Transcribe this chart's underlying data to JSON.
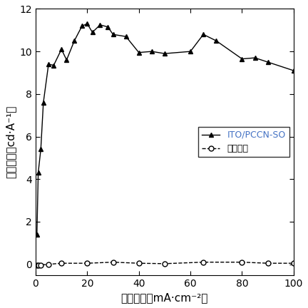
{
  "series1_label": "ITO/PCCN-SO",
  "series2_label": "对照器件",
  "series1_x": [
    0.5,
    1.0,
    2.0,
    3.0,
    5.0,
    7.0,
    10.0,
    12.0,
    15.0,
    18.0,
    20.0,
    22.0,
    25.0,
    28.0,
    30.0,
    35.0,
    40.0,
    45.0,
    50.0,
    60.0,
    65.0,
    70.0,
    80.0,
    85.0,
    90.0,
    100.0
  ],
  "series1_y": [
    1.4,
    4.3,
    5.4,
    7.6,
    9.4,
    9.35,
    10.1,
    9.6,
    10.5,
    11.2,
    11.3,
    10.9,
    11.25,
    11.15,
    10.8,
    10.7,
    9.95,
    10.0,
    9.9,
    10.0,
    10.8,
    10.5,
    9.65,
    9.7,
    9.5,
    9.1
  ],
  "series2_x": [
    0.5,
    1.0,
    2.0,
    5.0,
    10.0,
    20.0,
    30.0,
    40.0,
    50.0,
    65.0,
    80.0,
    90.0,
    100.0
  ],
  "series2_y": [
    -0.05,
    -0.05,
    -0.03,
    0.0,
    0.05,
    0.05,
    0.1,
    0.05,
    0.03,
    0.1,
    0.1,
    0.05,
    0.05
  ],
  "xlabel": "电流密度（mA·cm⁻²）",
  "ylabel": "电流效率（cd·A⁻¹）",
  "xlim": [
    0,
    100
  ],
  "ylim": [
    -0.5,
    12
  ],
  "yticks": [
    0,
    2,
    4,
    6,
    8,
    10,
    12
  ],
  "xticks": [
    0,
    20,
    40,
    60,
    80,
    100
  ],
  "series1_color": "#000000",
  "series2_color": "#000000",
  "legend_color1": "#4472C4",
  "background_color": "#ffffff",
  "marker1": "^",
  "marker2": "o",
  "linestyle1": "-",
  "linestyle2": "--",
  "figsize": [
    4.32,
    4.32
  ],
  "dpi": 100
}
